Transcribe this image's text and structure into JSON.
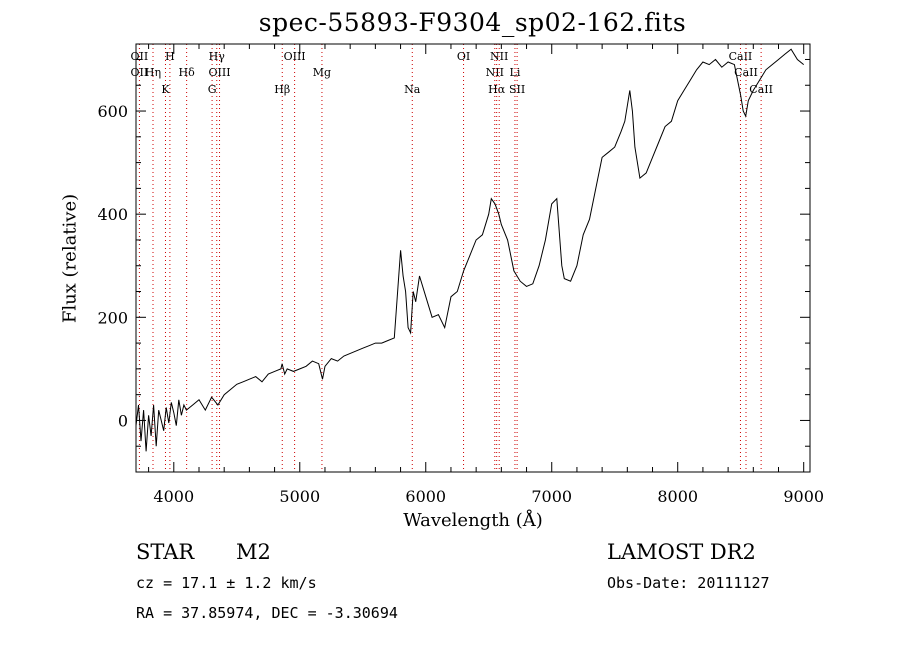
{
  "chart_data": {
    "type": "line",
    "title": "spec-55893-F9304_sp02-162.fits",
    "xlabel": "Wavelength (Å)",
    "ylabel": "Flux (relative)",
    "xlim": [
      3700,
      9050
    ],
    "ylim": [
      -100,
      730
    ],
    "xticks": [
      4000,
      5000,
      6000,
      7000,
      8000,
      9000
    ],
    "yticks": [
      0,
      200,
      400,
      600
    ],
    "series": [
      {
        "x": [
          3700,
          3720,
          3740,
          3760,
          3780,
          3800,
          3820,
          3840,
          3860,
          3880,
          3900,
          3920,
          3940,
          3960,
          3980,
          4000,
          4020,
          4040,
          4060,
          4080,
          4100,
          4150,
          4200,
          4250,
          4300,
          4350,
          4400,
          4450,
          4500,
          4550,
          4600,
          4650,
          4700,
          4750,
          4800,
          4850,
          4860,
          4880,
          4900,
          4950,
          5000,
          5050,
          5100,
          5150,
          5180,
          5200,
          5250,
          5300,
          5350,
          5400,
          5450,
          5500,
          5550,
          5600,
          5650,
          5700,
          5750,
          5780,
          5800,
          5820,
          5840,
          5860,
          5880,
          5900,
          5920,
          5950,
          6000,
          6050,
          6100,
          6150,
          6200,
          6250,
          6300,
          6350,
          6400,
          6450,
          6500,
          6520,
          6550,
          6580,
          6600,
          6650,
          6700,
          6750,
          6800,
          6850,
          6900,
          6950,
          7000,
          7040,
          7080,
          7100,
          7150,
          7200,
          7250,
          7300,
          7350,
          7400,
          7450,
          7500,
          7550,
          7580,
          7600,
          7620,
          7640,
          7660,
          7700,
          7750,
          7800,
          7850,
          7900,
          7950,
          8000,
          8050,
          8100,
          8150,
          8200,
          8250,
          8300,
          8350,
          8400,
          8450,
          8500,
          8520,
          8540,
          8560,
          8600,
          8650,
          8700,
          8750,
          8800,
          8850,
          8900,
          8950,
          9000
        ],
        "y": [
          -10,
          30,
          -40,
          20,
          -60,
          10,
          -30,
          30,
          -50,
          20,
          0,
          -20,
          25,
          -5,
          35,
          15,
          -10,
          40,
          10,
          30,
          20,
          30,
          40,
          20,
          45,
          30,
          50,
          60,
          70,
          75,
          80,
          85,
          75,
          90,
          95,
          100,
          110,
          90,
          100,
          95,
          100,
          105,
          115,
          110,
          80,
          105,
          120,
          115,
          125,
          130,
          135,
          140,
          145,
          150,
          150,
          155,
          160,
          260,
          330,
          280,
          250,
          180,
          170,
          250,
          230,
          280,
          240,
          200,
          205,
          180,
          240,
          250,
          290,
          320,
          350,
          360,
          400,
          430,
          420,
          400,
          380,
          350,
          290,
          270,
          260,
          265,
          300,
          350,
          420,
          430,
          300,
          275,
          270,
          300,
          360,
          390,
          450,
          510,
          520,
          530,
          560,
          580,
          610,
          640,
          600,
          530,
          470,
          480,
          510,
          540,
          570,
          580,
          620,
          640,
          660,
          680,
          695,
          690,
          700,
          685,
          695,
          690,
          630,
          600,
          590,
          620,
          640,
          660,
          680,
          690,
          700,
          710,
          720,
          700,
          690
        ]
      }
    ],
    "line_marks": [
      {
        "wave": 3727,
        "labels": [
          "OII",
          "OII"
        ]
      },
      {
        "wave": 3835,
        "labels": [
          "Hη"
        ]
      },
      {
        "wave": 3934,
        "labels": [
          "K"
        ]
      },
      {
        "wave": 3969,
        "labels": [
          "H"
        ]
      },
      {
        "wave": 4102,
        "labels": [
          "Hδ"
        ]
      },
      {
        "wave": 4304,
        "labels": [
          "G"
        ]
      },
      {
        "wave": 4341,
        "labels": [
          "Hγ"
        ]
      },
      {
        "wave": 4363,
        "labels": [
          "OIII"
        ]
      },
      {
        "wave": 4861,
        "labels": [
          "Hβ"
        ]
      },
      {
        "wave": 4959,
        "labels": [
          "OIII"
        ]
      },
      {
        "wave": 5176,
        "labels": [
          "Mg"
        ]
      },
      {
        "wave": 5893,
        "labels": [
          "Na"
        ]
      },
      {
        "wave": 6300,
        "labels": [
          "OI"
        ]
      },
      {
        "wave": 6548,
        "labels": [
          "NII"
        ]
      },
      {
        "wave": 6563,
        "labels": [
          "Hα"
        ]
      },
      {
        "wave": 6583,
        "labels": [
          "NII"
        ]
      },
      {
        "wave": 6708,
        "labels": [
          "Li"
        ]
      },
      {
        "wave": 6725,
        "labels": [
          "SII"
        ]
      },
      {
        "wave": 8498,
        "labels": [
          "CaII"
        ]
      },
      {
        "wave": 8542,
        "labels": [
          "CaII"
        ]
      },
      {
        "wave": 8662,
        "labels": [
          "CaII"
        ]
      }
    ],
    "grid": false,
    "legend": "none"
  },
  "info": {
    "class": "STAR",
    "subclass": "M2",
    "survey": "LAMOST DR2",
    "cz": "cz = 17.1 ± 1.2 km/s",
    "obs_date": "Obs-Date: 20111127",
    "radec": "RA =  37.85974, DEC =  -3.30694"
  },
  "colors": {
    "line": "#000000",
    "marker_line": "#cc0000"
  }
}
